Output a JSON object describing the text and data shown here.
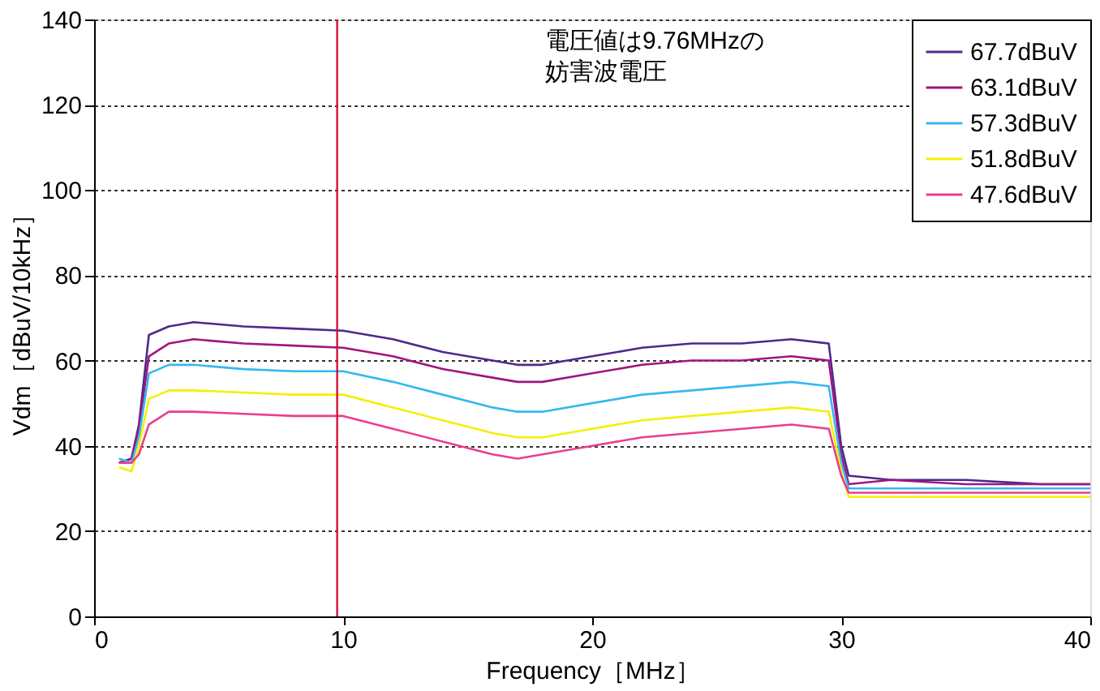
{
  "chart_data": {
    "type": "line",
    "xlabel": "Frequency［MHz］",
    "ylabel": "Vdm［dBuV/10kHz］",
    "x": [
      1,
      1.5,
      1.8,
      2.2,
      3,
      4,
      6,
      8,
      10,
      12,
      14,
      16,
      17,
      18,
      20,
      22,
      24,
      26,
      28,
      29.5,
      30,
      30.3,
      32,
      35,
      38,
      40
    ],
    "series": [
      {
        "name": "67.7dBuV",
        "color": "#4b2a8c",
        "values": [
          36,
          37,
          45,
          66,
          68,
          69,
          68,
          67.5,
          67,
          65,
          62,
          60,
          59,
          59,
          61,
          63,
          64,
          64,
          65,
          64,
          40,
          33,
          32,
          32,
          31,
          31
        ]
      },
      {
        "name": "63.1dBuV",
        "color": "#a0157f",
        "values": [
          36,
          37,
          44,
          61,
          64,
          65,
          64,
          63.5,
          63,
          61,
          58,
          56,
          55,
          55,
          57,
          59,
          60,
          60,
          61,
          60,
          38,
          31,
          32,
          31,
          31,
          31
        ]
      },
      {
        "name": "57.3dBuV",
        "color": "#35b8ee",
        "values": [
          37,
          36,
          42,
          57,
          59,
          59,
          58,
          57.5,
          57.5,
          55,
          52,
          49,
          48,
          48,
          50,
          52,
          53,
          54,
          55,
          54,
          36,
          30,
          30,
          30,
          30,
          30
        ]
      },
      {
        "name": "51.8dBuV",
        "color": "#f5ef00",
        "values": [
          35,
          34,
          40,
          51,
          53,
          53,
          52.5,
          52,
          52,
          49,
          46,
          43,
          42,
          42,
          44,
          46,
          47,
          48,
          49,
          48,
          34,
          28,
          28,
          28,
          28,
          28
        ]
      },
      {
        "name": "47.6dBuV",
        "color": "#ec3d8c",
        "values": [
          36,
          36,
          38,
          45,
          48,
          48,
          47.5,
          47,
          47,
          44,
          41,
          38,
          37,
          38,
          40,
          42,
          43,
          44,
          45,
          44,
          33,
          29,
          29,
          29,
          29,
          29
        ]
      }
    ],
    "xlim": [
      0,
      40
    ],
    "xticks": [
      0,
      10,
      20,
      30,
      40
    ],
    "ylim": [
      0,
      140
    ],
    "yticks": [
      0,
      20,
      40,
      60,
      80,
      100,
      120,
      140
    ],
    "ref_lines": [
      {
        "axis": "x",
        "value": 9.76,
        "color": "#d0103a"
      }
    ],
    "annotations": [
      "電圧値は9.76MHzの妨害波電圧"
    ],
    "grid": "y",
    "legend": "top right",
    "line_style": "solid"
  }
}
